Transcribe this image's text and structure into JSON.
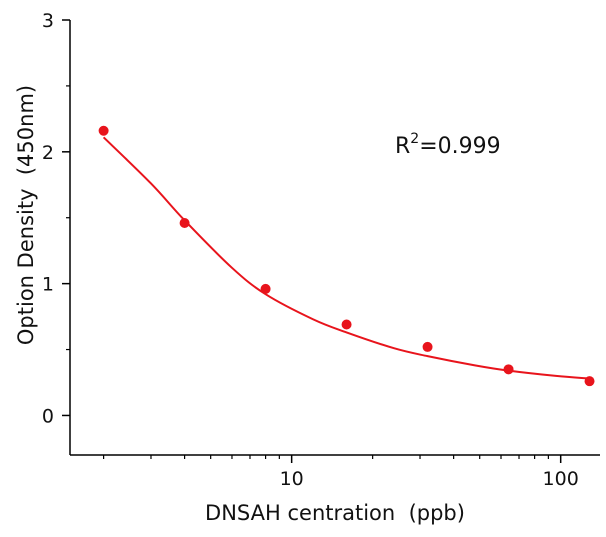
{
  "chart_data": {
    "type": "scatter",
    "log_x": true,
    "x_label": "DNSAH centration  (ppb)",
    "y_label": "Option Density  (450nm)",
    "annotation": {
      "base": "R",
      "sup": "2",
      "rest": "=0.999"
    },
    "xlim": [
      1.5,
      140
    ],
    "ylim": [
      -0.3,
      3
    ],
    "xticks": [
      10,
      100
    ],
    "yticks": [
      0,
      1,
      2,
      3
    ],
    "xminorticks": [
      2,
      3,
      4,
      5,
      6,
      7,
      8,
      9,
      20,
      30,
      40,
      50,
      60,
      70,
      80,
      90
    ],
    "yminorticks": [
      0.5,
      1.5,
      2.5
    ],
    "series": [
      {
        "kind": "points",
        "color": "#e8141c",
        "x": [
          2,
          4,
          8,
          16,
          32,
          64,
          128
        ],
        "values": [
          2.16,
          1.46,
          0.96,
          0.69,
          0.52,
          0.35,
          0.26
        ]
      },
      {
        "kind": "fit",
        "color": "#e8141c",
        "x": [
          2,
          3,
          4,
          6,
          8,
          12,
          16,
          24,
          32,
          48,
          64,
          96,
          128
        ],
        "values": [
          2.11,
          1.76,
          1.48,
          1.12,
          0.92,
          0.73,
          0.63,
          0.51,
          0.45,
          0.38,
          0.34,
          0.3,
          0.28
        ]
      }
    ]
  }
}
